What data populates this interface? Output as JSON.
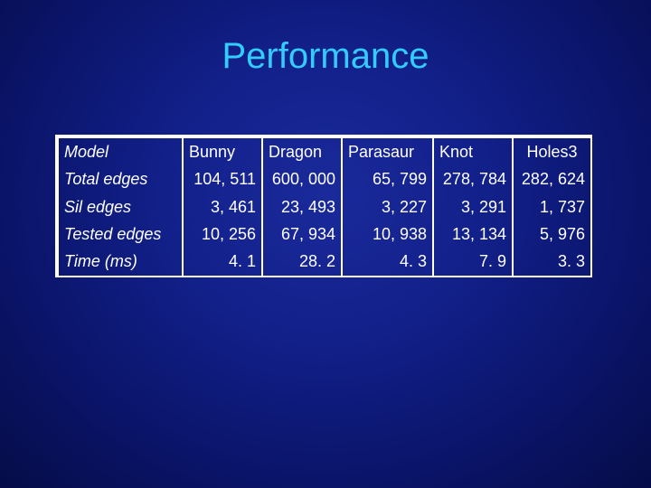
{
  "title": "Performance",
  "table": {
    "columns": [
      "Model",
      "Bunny",
      "Dragon",
      "Parasaur",
      "Knot",
      "Holes3"
    ],
    "rows": [
      {
        "label": "Total edges",
        "values": [
          "104, 511",
          "600, 000",
          "65, 799",
          "278, 784",
          "282, 624"
        ]
      },
      {
        "label": "Sil edges",
        "values": [
          "3, 461",
          "23, 493",
          "3, 227",
          "3, 291",
          "1, 737"
        ]
      },
      {
        "label": "Tested edges",
        "values": [
          "10, 256",
          "67, 934",
          "10, 938",
          "13, 134",
          "5, 976"
        ]
      },
      {
        "label": "Time (ms)",
        "values": [
          "4. 1",
          "28. 2",
          "4. 3",
          "7. 9",
          "3. 3"
        ]
      }
    ]
  }
}
